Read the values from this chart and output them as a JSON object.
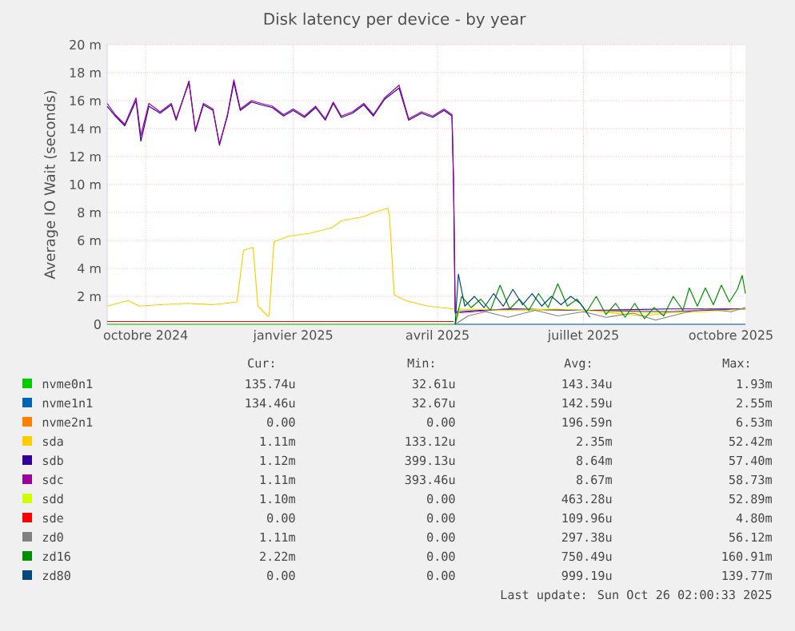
{
  "chart_data": {
    "type": "line",
    "title": "Disk latency per device - by year",
    "ylabel": "Average IO Wait (seconds)",
    "xlim": [
      "2024-09-07",
      "2025-10-10"
    ],
    "xticks": [
      {
        "value": "2024-10-01",
        "label": "octobre 2024"
      },
      {
        "value": "2025-01-01",
        "label": "janvier 2025"
      },
      {
        "value": "2025-04-01",
        "label": "avril 2025"
      },
      {
        "value": "2025-07-01",
        "label": "juillet 2025"
      },
      {
        "value": "2025-10-01",
        "label": "octobre 2025"
      }
    ],
    "ylim": [
      0,
      20
    ],
    "yticks": [
      0,
      {
        "value": 2,
        "label": "2 m"
      },
      {
        "value": 4,
        "label": "4 m"
      },
      {
        "value": 6,
        "label": "6 m"
      },
      {
        "value": 8,
        "label": "8 m"
      },
      {
        "value": 10,
        "label": "10 m"
      },
      {
        "value": 12,
        "label": "12 m"
      },
      {
        "value": 14,
        "label": "14 m"
      },
      {
        "value": 16,
        "label": "16 m"
      },
      {
        "value": 18,
        "label": "18 m"
      },
      {
        "value": 20,
        "label": "20 m"
      }
    ],
    "grid": true,
    "legend": "bottom",
    "series": [
      {
        "name": "nvme0n1",
        "color": "#00cc00",
        "x": [
          "2024-09-07",
          "2025-04-12"
        ],
        "values": [
          0,
          0
        ]
      },
      {
        "name": "nvme1n1",
        "color": "#0066b3",
        "x": [
          "2025-04-12",
          "2025-10-10"
        ],
        "values": [
          0,
          0
        ]
      },
      {
        "name": "nvme2n1",
        "color": "#ff8000"
      },
      {
        "name": "sda",
        "color": "#ffcc00",
        "x": [
          "2024-09-07",
          "2024-09-20",
          "2024-09-27",
          "2024-10-10",
          "2024-10-27",
          "2024-11-12",
          "2024-11-27",
          "2024-12-01",
          "2024-12-07",
          "2024-12-10",
          "2024-12-16",
          "2024-12-17",
          "2024-12-20",
          "2024-12-29",
          "2025-01-11",
          "2025-01-25",
          "2025-01-31",
          "2025-02-14",
          "2025-02-20",
          "2025-03-01",
          "2025-03-02",
          "2025-03-05",
          "2025-03-12",
          "2025-03-26",
          "2025-04-11",
          "2025-04-28",
          "2025-05-31",
          "2025-07-04",
          "2025-08-06",
          "2025-09-08",
          "2025-10-10"
        ],
        "values": [
          1.3,
          1.7,
          1.3,
          1.4,
          1.5,
          1.4,
          1.6,
          5.3,
          5.5,
          1.3,
          0.6,
          0.6,
          5.9,
          6.3,
          6.5,
          6.9,
          7.4,
          7.7,
          8.0,
          8.3,
          7.8,
          2.1,
          1.7,
          1.3,
          1.1,
          1.0,
          1.0,
          1.0,
          0.6,
          1.0,
          1.1
        ]
      },
      {
        "name": "sdb",
        "color": "#330099",
        "x": [
          "2024-09-07",
          "2024-09-12",
          "2024-09-18",
          "2024-09-25",
          "2024-09-28",
          "2024-10-03",
          "2024-10-10",
          "2024-10-17",
          "2024-10-20",
          "2024-10-28",
          "2024-11-01",
          "2024-11-06",
          "2024-11-12",
          "2024-11-16",
          "2024-11-21",
          "2024-11-25",
          "2024-11-29",
          "2024-12-06",
          "2024-12-12",
          "2024-12-19",
          "2024-12-26",
          "2025-01-01",
          "2025-01-08",
          "2025-01-15",
          "2025-01-21",
          "2025-01-26",
          "2025-01-31",
          "2025-02-07",
          "2025-02-14",
          "2025-02-20",
          "2025-02-27",
          "2025-03-08",
          "2025-03-14",
          "2025-03-22",
          "2025-03-29",
          "2025-04-05",
          "2025-04-10",
          "2025-04-11",
          "2025-04-12",
          "2025-05-15",
          "2025-07-04",
          "2025-08-23",
          "2025-10-10"
        ],
        "values": [
          15.6,
          14.9,
          14.2,
          16.0,
          13.1,
          15.6,
          15.1,
          15.7,
          14.6,
          17.4,
          13.8,
          15.7,
          15.3,
          12.9,
          14.9,
          17.3,
          15.3,
          15.9,
          15.7,
          15.5,
          14.9,
          15.3,
          14.8,
          15.5,
          14.6,
          15.8,
          14.8,
          15.1,
          15.7,
          14.9,
          16.1,
          16.9,
          14.6,
          15.1,
          14.8,
          15.3,
          14.9,
          10.1,
          0.9,
          1.1,
          1.0,
          1.1,
          1.1
        ]
      },
      {
        "name": "sdc",
        "color": "#990099",
        "x": [
          "2024-09-07",
          "2024-09-12",
          "2024-09-18",
          "2024-09-25",
          "2024-09-28",
          "2024-10-03",
          "2024-10-10",
          "2024-10-17",
          "2024-10-20",
          "2024-10-28",
          "2024-11-01",
          "2024-11-06",
          "2024-11-12",
          "2024-11-16",
          "2024-11-21",
          "2024-11-25",
          "2024-11-29",
          "2024-12-06",
          "2024-12-12",
          "2024-12-19",
          "2024-12-26",
          "2025-01-01",
          "2025-01-08",
          "2025-01-15",
          "2025-01-21",
          "2025-01-26",
          "2025-01-31",
          "2025-02-07",
          "2025-02-14",
          "2025-02-20",
          "2025-02-27",
          "2025-03-08",
          "2025-03-14",
          "2025-03-22",
          "2025-03-29",
          "2025-04-05",
          "2025-04-10",
          "2025-04-11",
          "2025-04-12",
          "2025-05-15",
          "2025-07-04",
          "2025-08-23",
          "2025-10-10"
        ],
        "values": [
          15.8,
          15.0,
          14.3,
          16.2,
          13.5,
          15.8,
          15.2,
          15.8,
          14.7,
          17.3,
          13.9,
          15.8,
          15.4,
          12.8,
          15.0,
          17.5,
          15.4,
          16.0,
          15.8,
          15.6,
          15.0,
          15.4,
          14.9,
          15.6,
          14.7,
          15.9,
          14.9,
          15.2,
          15.8,
          15.0,
          16.2,
          17.1,
          14.7,
          15.2,
          14.9,
          15.4,
          15.0,
          10.1,
          0.8,
          1.1,
          1.0,
          0.9,
          1.1
        ]
      },
      {
        "name": "sdd",
        "color": "#ccff00",
        "x": [
          "2025-04-12",
          "2025-04-15",
          "2025-05-15",
          "2025-06-15",
          "2025-07-15",
          "2025-08-15",
          "2025-09-15",
          "2025-10-10"
        ],
        "values": [
          0,
          1.1,
          1.0,
          1.1,
          0.9,
          0.8,
          0.9,
          1.1
        ]
      },
      {
        "name": "sde",
        "color": "#ff0000",
        "x": [
          "2024-09-07",
          "2025-04-11"
        ],
        "values": [
          0.2,
          0.2
        ]
      },
      {
        "name": "zd0",
        "color": "#808080",
        "x": [
          "2025-04-12",
          "2025-04-20",
          "2025-05-01",
          "2025-05-15",
          "2025-06-01",
          "2025-06-15",
          "2025-07-01",
          "2025-07-15",
          "2025-08-01",
          "2025-08-15",
          "2025-09-01",
          "2025-09-15",
          "2025-10-01",
          "2025-10-10"
        ],
        "values": [
          0,
          0.6,
          0.9,
          0.5,
          1.0,
          0.6,
          0.9,
          0.5,
          0.8,
          0.3,
          0.8,
          1.1,
          0.9,
          1.2
        ]
      },
      {
        "name": "zd16",
        "color": "#008f00",
        "x": [
          "2025-04-12",
          "2025-04-16",
          "2025-04-22",
          "2025-04-28",
          "2025-05-04",
          "2025-05-10",
          "2025-05-16",
          "2025-05-22",
          "2025-05-28",
          "2025-06-03",
          "2025-06-09",
          "2025-06-15",
          "2025-06-21",
          "2025-06-27",
          "2025-07-03",
          "2025-07-09",
          "2025-07-15",
          "2025-07-21",
          "2025-07-27",
          "2025-08-02",
          "2025-08-08",
          "2025-08-14",
          "2025-08-20",
          "2025-08-26",
          "2025-09-01",
          "2025-09-05",
          "2025-09-10",
          "2025-09-15",
          "2025-09-20",
          "2025-09-25",
          "2025-09-30",
          "2025-10-05",
          "2025-10-08",
          "2025-10-10"
        ],
        "values": [
          0,
          2.0,
          1.2,
          1.8,
          1.0,
          2.8,
          1.1,
          1.8,
          1.0,
          2.2,
          1.2,
          2.9,
          1.3,
          1.8,
          0.9,
          2.0,
          0.7,
          1.5,
          0.5,
          1.5,
          0.4,
          1.2,
          0.6,
          2.0,
          1.0,
          2.6,
          1.3,
          2.6,
          1.4,
          2.8,
          1.6,
          2.5,
          3.5,
          2.2
        ]
      },
      {
        "name": "zd80",
        "color": "#00487d",
        "x": [
          "2025-04-12",
          "2025-04-14",
          "2025-04-18",
          "2025-04-24",
          "2025-04-30",
          "2025-05-06",
          "2025-05-12",
          "2025-05-18",
          "2025-05-24",
          "2025-05-30",
          "2025-06-05",
          "2025-06-11",
          "2025-06-17",
          "2025-06-23",
          "2025-06-29",
          "2025-07-05"
        ],
        "values": [
          0,
          3.6,
          1.3,
          2.0,
          1.2,
          2.2,
          1.3,
          2.5,
          1.4,
          2.2,
          1.3,
          2.0,
          1.4,
          2.0,
          1.5,
          0.5
        ]
      }
    ],
    "annotations": [
      "Cur:",
      "Min:",
      "Avg:",
      "Max:",
      "135.74u",
      "32.61u",
      "143.34u",
      "1.93m",
      "134.46u",
      "32.67u",
      "142.59u",
      "2.55m",
      "0.00",
      "0.00",
      "196.59n",
      "6.53m",
      "1.11m",
      "133.12u",
      "2.35m",
      "52.42m",
      "1.12m",
      "399.13u",
      "8.64m",
      "57.40m",
      "1.11m",
      "393.46u",
      "8.67m",
      "58.73m",
      "1.10m",
      "0.00",
      "463.28u",
      "52.89m",
      "0.00",
      "0.00",
      "109.96u",
      "4.80m",
      "1.11m",
      "0.00",
      "297.38u",
      "56.12m",
      "2.22m",
      "0.00",
      "750.49u",
      "160.91m",
      "0.00",
      "0.00",
      "999.19u",
      "139.77m",
      "Last update: Sun Oct 26 02:00:33 2025"
    ]
  }
}
